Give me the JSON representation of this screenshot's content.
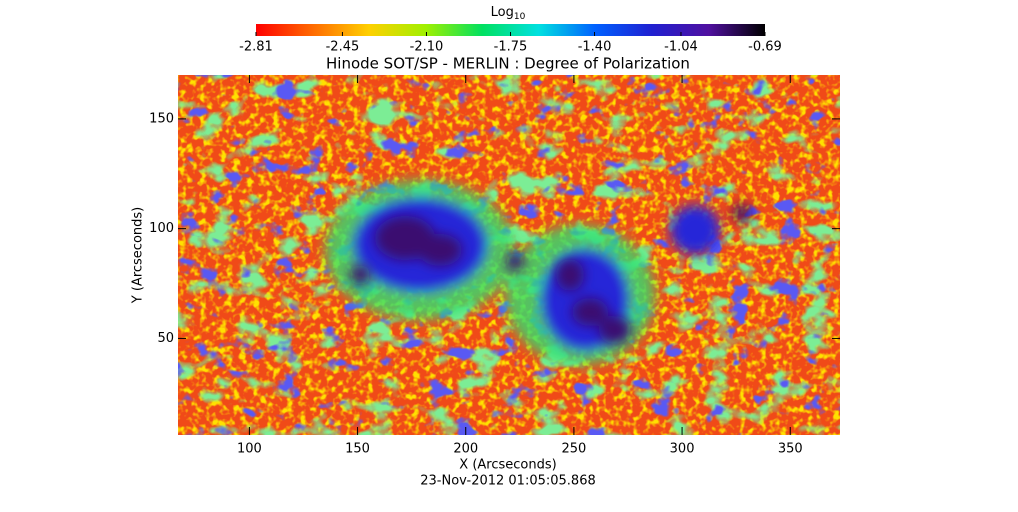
{
  "chart_data": {
    "type": "heatmap",
    "title": "Hinode SOT/SP - MERLIN : Degree of Polarization",
    "x_label": "X (Arcseconds)",
    "y_label": "Y (Arcseconds)",
    "timestamp": "23-Nov-2012 01:05:05.868",
    "xlim": [
      67,
      373
    ],
    "ylim": [
      6,
      170
    ],
    "xticks": [
      100,
      150,
      200,
      250,
      300,
      350
    ],
    "yticks": [
      50,
      100,
      150
    ],
    "colorbar_label": "Log",
    "colorbar_label_sub": "10",
    "colorbar_lim": [
      -2.81,
      -0.69
    ],
    "colorbar_ticks": [
      -2.81,
      -2.45,
      {
        "value": -2.1,
        "label": "-2.10"
      },
      -1.75,
      {
        "value": -1.4,
        "label": "-1.40"
      },
      -1.04,
      -0.69
    ],
    "colormap": [
      "#ff0000",
      "#ff6a00",
      "#ffd000",
      "#a0f000",
      "#00e060",
      "#00e0e0",
      "#0060ff",
      "#2020d0",
      "#5010a0",
      "#000000"
    ]
  }
}
